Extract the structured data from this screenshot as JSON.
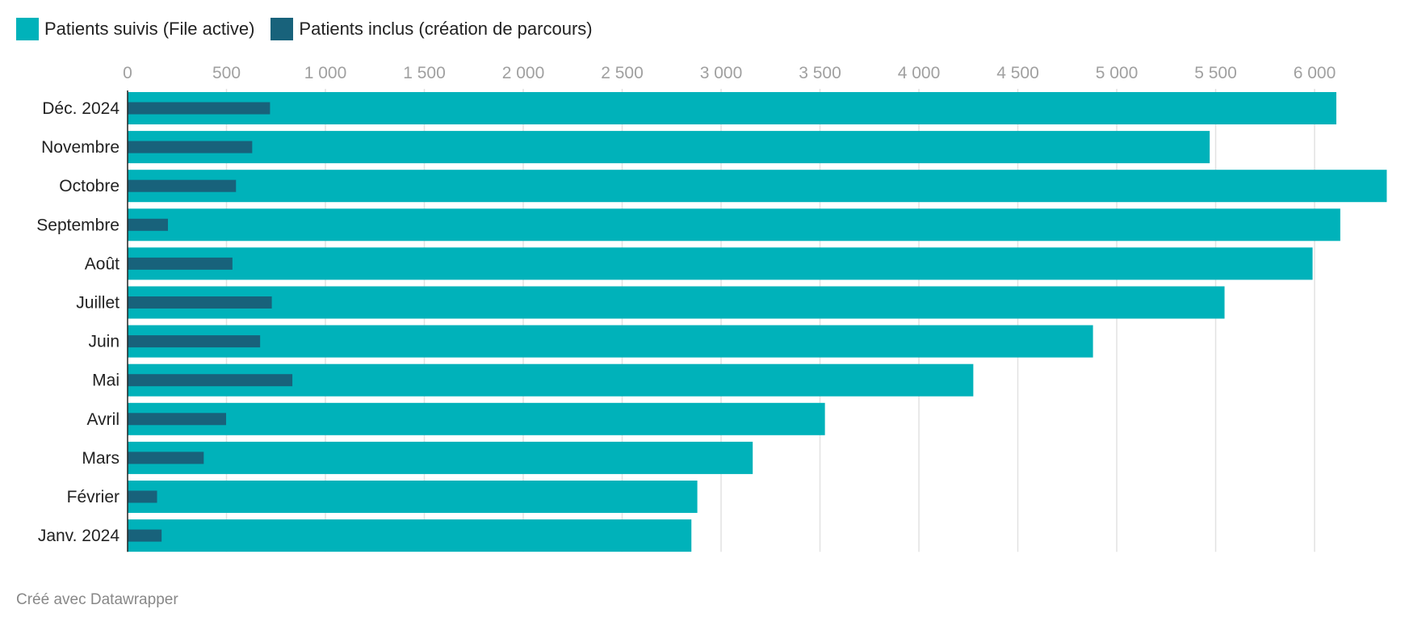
{
  "chart_data": {
    "type": "bar",
    "orientation": "horizontal",
    "title": "",
    "xlabel": "",
    "ylabel": "",
    "xlim": [
      0,
      6370
    ],
    "grid": true,
    "legend_placement": "top-left",
    "x_ticks": [
      0,
      500,
      1000,
      1500,
      2000,
      2500,
      3000,
      3500,
      4000,
      4500,
      5000,
      5500,
      6000
    ],
    "x_tick_labels": [
      "0",
      "500",
      "1 000",
      "1 500",
      "2 000",
      "2 500",
      "3 000",
      "3 500",
      "4 000",
      "4 500",
      "5 000",
      "5 500",
      "6 000"
    ],
    "categories": [
      "Déc. 2024",
      "Novembre",
      "Octobre",
      "Septembre",
      "Août",
      "Juillet",
      "Juin",
      "Mai",
      "Avril",
      "Mars",
      "Février",
      "Janv. 2024"
    ],
    "series": [
      {
        "name": "Patients suivis (File active)",
        "color": "#00b2ba",
        "values": [
          6110,
          5470,
          6365,
          6130,
          5990,
          5545,
          4880,
          4275,
          3525,
          3160,
          2880,
          2850
        ]
      },
      {
        "name": "Patients inclus (création de parcours)",
        "color": "#18627b",
        "values": [
          720,
          630,
          548,
          204,
          530,
          729,
          670,
          833,
          498,
          385,
          149,
          172
        ]
      }
    ]
  },
  "footer": "Créé avec Datawrapper"
}
